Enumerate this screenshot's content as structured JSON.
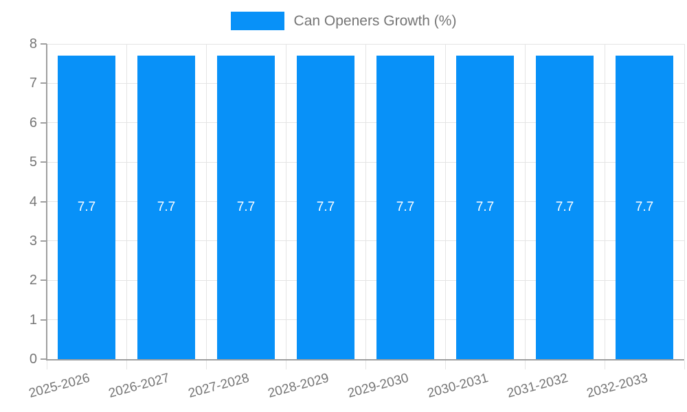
{
  "chart_data": {
    "type": "bar",
    "title": "Can Openers Growth (%)",
    "categories": [
      "2025-2026",
      "2026-2027",
      "2027-2028",
      "2028-2029",
      "2029-2030",
      "2030-2031",
      "2031-2032",
      "2032-2033"
    ],
    "series": [
      {
        "name": "Can Openers Growth (%)",
        "values": [
          7.7,
          7.7,
          7.7,
          7.7,
          7.7,
          7.7,
          7.7,
          7.7
        ],
        "value_labels": [
          "7.7",
          "7.7",
          "7.7",
          "7.7",
          "7.7",
          "7.7",
          "7.7",
          "7.7"
        ]
      }
    ],
    "xlabel": "",
    "ylabel": "",
    "ylim": [
      0,
      8
    ],
    "yticks": [
      "0",
      "1",
      "2",
      "3",
      "4",
      "5",
      "6",
      "7",
      "8"
    ],
    "grid": true,
    "legend_position": "top",
    "colors": {
      "bar": "#0891F8",
      "axis": "#9E9E9E",
      "grid": "#E4E4E4",
      "tick_text": "#757575",
      "value_label": "#FFFFFF",
      "background": "#FFFFFF"
    }
  }
}
